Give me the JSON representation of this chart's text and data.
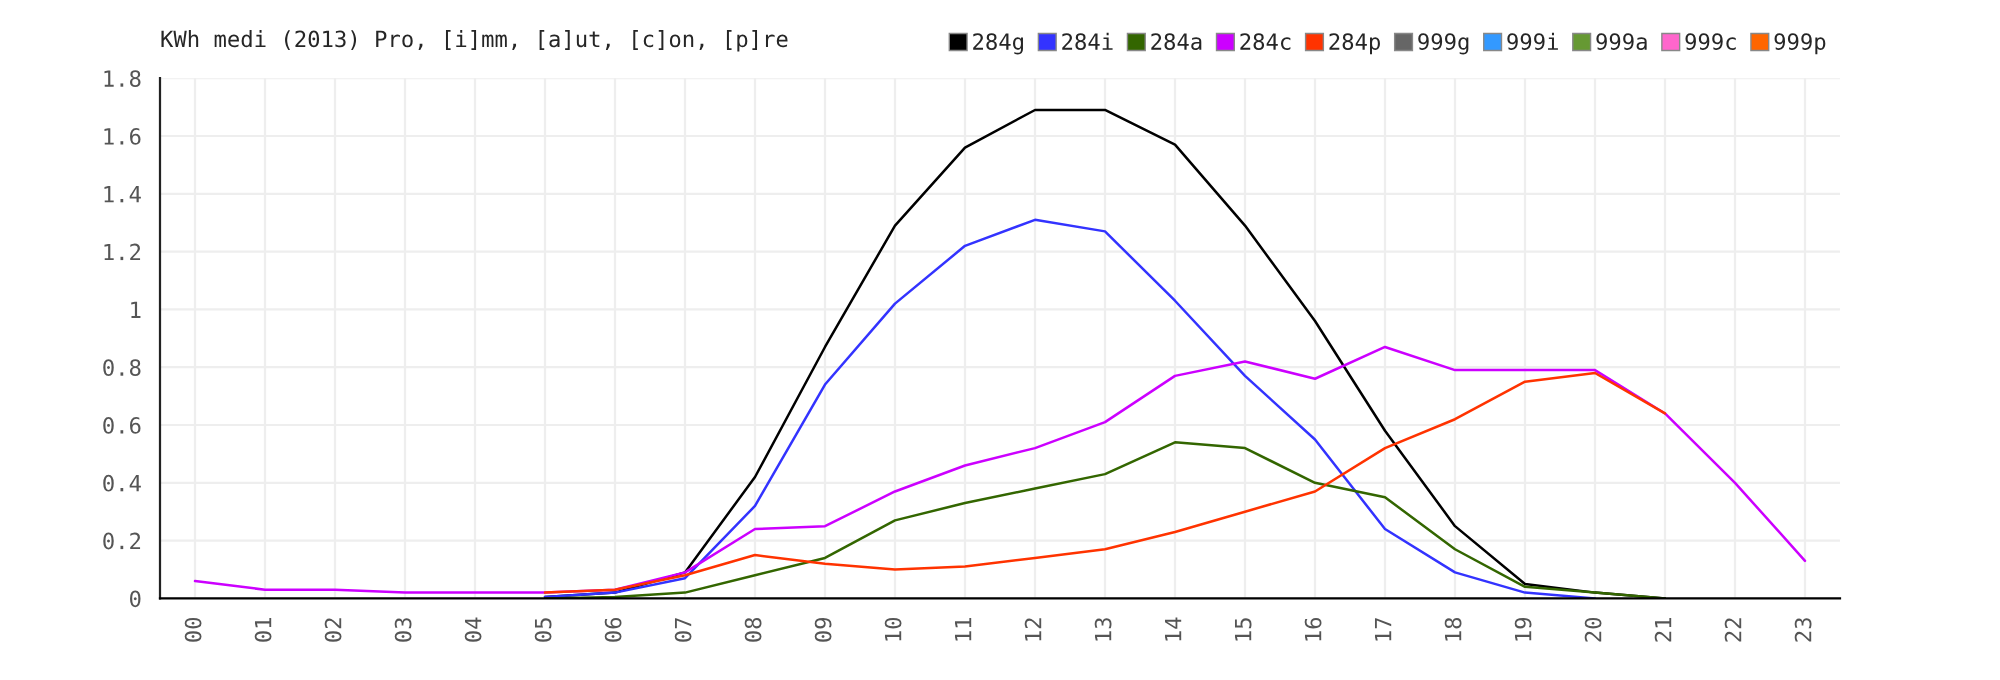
{
  "chart_data": {
    "type": "line",
    "title": "KWh medi (2013) Pro, [i]mm, [a]ut, [c]on, [p]re",
    "categories": [
      "00",
      "01",
      "02",
      "03",
      "04",
      "05",
      "06",
      "07",
      "08",
      "09",
      "10",
      "11",
      "12",
      "13",
      "14",
      "15",
      "16",
      "17",
      "18",
      "19",
      "20",
      "21",
      "22",
      "23"
    ],
    "series": [
      {
        "name": "284g",
        "color": "#000000",
        "values": [
          null,
          null,
          null,
          null,
          null,
          0.005,
          0.02,
          0.09,
          0.42,
          0.87,
          1.29,
          1.56,
          1.69,
          1.69,
          1.57,
          1.29,
          0.96,
          0.58,
          0.25,
          0.05,
          0.02,
          0.0,
          null,
          null
        ]
      },
      {
        "name": "284i",
        "color": "#3333ff",
        "values": [
          null,
          null,
          null,
          null,
          null,
          0.005,
          0.02,
          0.07,
          0.32,
          0.74,
          1.02,
          1.22,
          1.31,
          1.27,
          1.03,
          0.77,
          0.55,
          0.24,
          0.09,
          0.02,
          0.0,
          null,
          null,
          null
        ]
      },
      {
        "name": "284a",
        "color": "#336600",
        "values": [
          null,
          null,
          null,
          null,
          null,
          0.0,
          0.005,
          0.02,
          0.08,
          0.14,
          0.27,
          0.33,
          0.38,
          0.43,
          0.54,
          0.52,
          0.4,
          0.35,
          0.17,
          0.04,
          0.02,
          0.0,
          null,
          null
        ]
      },
      {
        "name": "284c",
        "color": "#cc00ff",
        "values": [
          0.06,
          0.03,
          0.03,
          0.02,
          0.02,
          0.02,
          0.03,
          0.09,
          0.24,
          0.25,
          0.37,
          0.46,
          0.52,
          0.61,
          0.77,
          0.82,
          0.76,
          0.87,
          0.79,
          0.79,
          0.79,
          0.64,
          0.4,
          0.13
        ]
      },
      {
        "name": "284p",
        "color": "#ff3300",
        "values": [
          null,
          null,
          null,
          null,
          null,
          0.02,
          0.03,
          0.08,
          0.15,
          0.12,
          0.1,
          0.11,
          0.14,
          0.17,
          0.23,
          0.3,
          0.37,
          0.52,
          0.62,
          0.75,
          0.78,
          0.64,
          null,
          null
        ]
      },
      {
        "name": "999g",
        "color": "#666666",
        "values": [
          null,
          null,
          null,
          null,
          null,
          null,
          null,
          null,
          null,
          null,
          null,
          null,
          null,
          null,
          null,
          null,
          null,
          null,
          null,
          null,
          null,
          null,
          null,
          null
        ]
      },
      {
        "name": "999i",
        "color": "#3399ff",
        "values": [
          null,
          null,
          null,
          null,
          null,
          null,
          null,
          null,
          null,
          null,
          null,
          null,
          null,
          null,
          null,
          null,
          null,
          null,
          null,
          null,
          null,
          null,
          null,
          null
        ]
      },
      {
        "name": "999a",
        "color": "#669933",
        "values": [
          null,
          null,
          null,
          null,
          null,
          null,
          null,
          null,
          null,
          null,
          null,
          null,
          null,
          null,
          null,
          null,
          null,
          null,
          null,
          null,
          null,
          null,
          null,
          null
        ]
      },
      {
        "name": "999c",
        "color": "#ff66cc",
        "values": [
          null,
          null,
          null,
          null,
          null,
          null,
          null,
          null,
          null,
          null,
          null,
          null,
          null,
          null,
          null,
          null,
          null,
          null,
          null,
          null,
          null,
          null,
          null,
          null
        ]
      },
      {
        "name": "999p",
        "color": "#ff6600",
        "values": [
          null,
          null,
          null,
          null,
          null,
          null,
          null,
          null,
          null,
          null,
          null,
          null,
          null,
          null,
          null,
          null,
          null,
          null,
          null,
          null,
          null,
          null,
          null,
          null
        ]
      }
    ],
    "ylim": [
      0,
      1.8
    ],
    "yticks": [
      0,
      0.2,
      0.4,
      0.6,
      0.8,
      1,
      1.2,
      1.4,
      1.6,
      1.8
    ],
    "grid": true,
    "legend": "top right"
  }
}
